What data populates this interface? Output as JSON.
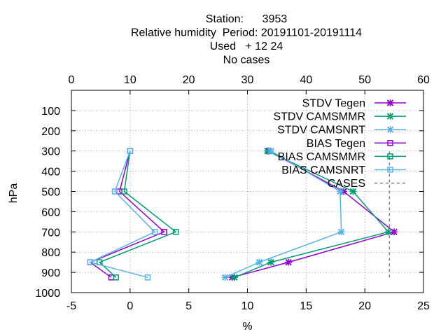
{
  "chart_data": {
    "type": "line",
    "title_lines": [
      "Station:      3953",
      "Relative humidity  Period: 20191101-20191114",
      "Used   + 12 24",
      "No cases"
    ],
    "xlabel": "%",
    "ylabel": "hPa",
    "xlim": [
      -5,
      25
    ],
    "x2lim": [
      0,
      60
    ],
    "ylim": [
      1000,
      0
    ],
    "xticks": [
      -5,
      0,
      5,
      10,
      15,
      20,
      25
    ],
    "x2ticks": [
      0,
      10,
      20,
      30,
      40,
      50,
      60
    ],
    "yticks": [
      100,
      200,
      300,
      400,
      500,
      600,
      700,
      800,
      900,
      1000
    ],
    "grid": true,
    "legend_position": "top-right",
    "series": [
      {
        "name": "STDV Tegen",
        "marker": "x",
        "color": "#9400d3",
        "points": [
          [
            8.7,
            925
          ],
          [
            13.5,
            850
          ],
          [
            22.5,
            700
          ],
          [
            18.2,
            500
          ],
          [
            11.8,
            300
          ]
        ]
      },
      {
        "name": "STDV CAMSMMR",
        "marker": "x",
        "color": "#009e73",
        "points": [
          [
            8.9,
            925
          ],
          [
            12.0,
            850
          ],
          [
            22.0,
            700
          ],
          [
            19.0,
            500
          ],
          [
            11.7,
            300
          ]
        ]
      },
      {
        "name": "STDV CAMSNRT",
        "marker": "x",
        "color": "#56b4e9",
        "points": [
          [
            8.1,
            925
          ],
          [
            11.0,
            850
          ],
          [
            18.0,
            700
          ],
          [
            17.9,
            500
          ],
          [
            12.0,
            300
          ]
        ]
      },
      {
        "name": "BIAS Tegen",
        "marker": "square",
        "color": "#9400d3",
        "points": [
          [
            -1.6,
            925
          ],
          [
            -3.4,
            850
          ],
          [
            2.9,
            700
          ],
          [
            -0.9,
            500
          ],
          [
            0.0,
            300
          ]
        ]
      },
      {
        "name": "BIAS CAMSMMR",
        "marker": "square",
        "color": "#009e73",
        "points": [
          [
            -1.2,
            925
          ],
          [
            -2.6,
            850
          ],
          [
            3.9,
            700
          ],
          [
            -0.5,
            500
          ],
          [
            0.0,
            300
          ]
        ]
      },
      {
        "name": "BIAS CAMSNRT",
        "marker": "square",
        "color": "#56b4e9",
        "points": [
          [
            1.5,
            925
          ],
          [
            -3.4,
            850
          ],
          [
            2.1,
            700
          ],
          [
            -1.3,
            500
          ],
          [
            0.0,
            300
          ]
        ]
      },
      {
        "name": "CASES",
        "marker": "none",
        "color": "#808080",
        "dash": true,
        "points": [
          [
            22.1,
            925
          ],
          [
            22.1,
            300
          ]
        ]
      }
    ]
  }
}
